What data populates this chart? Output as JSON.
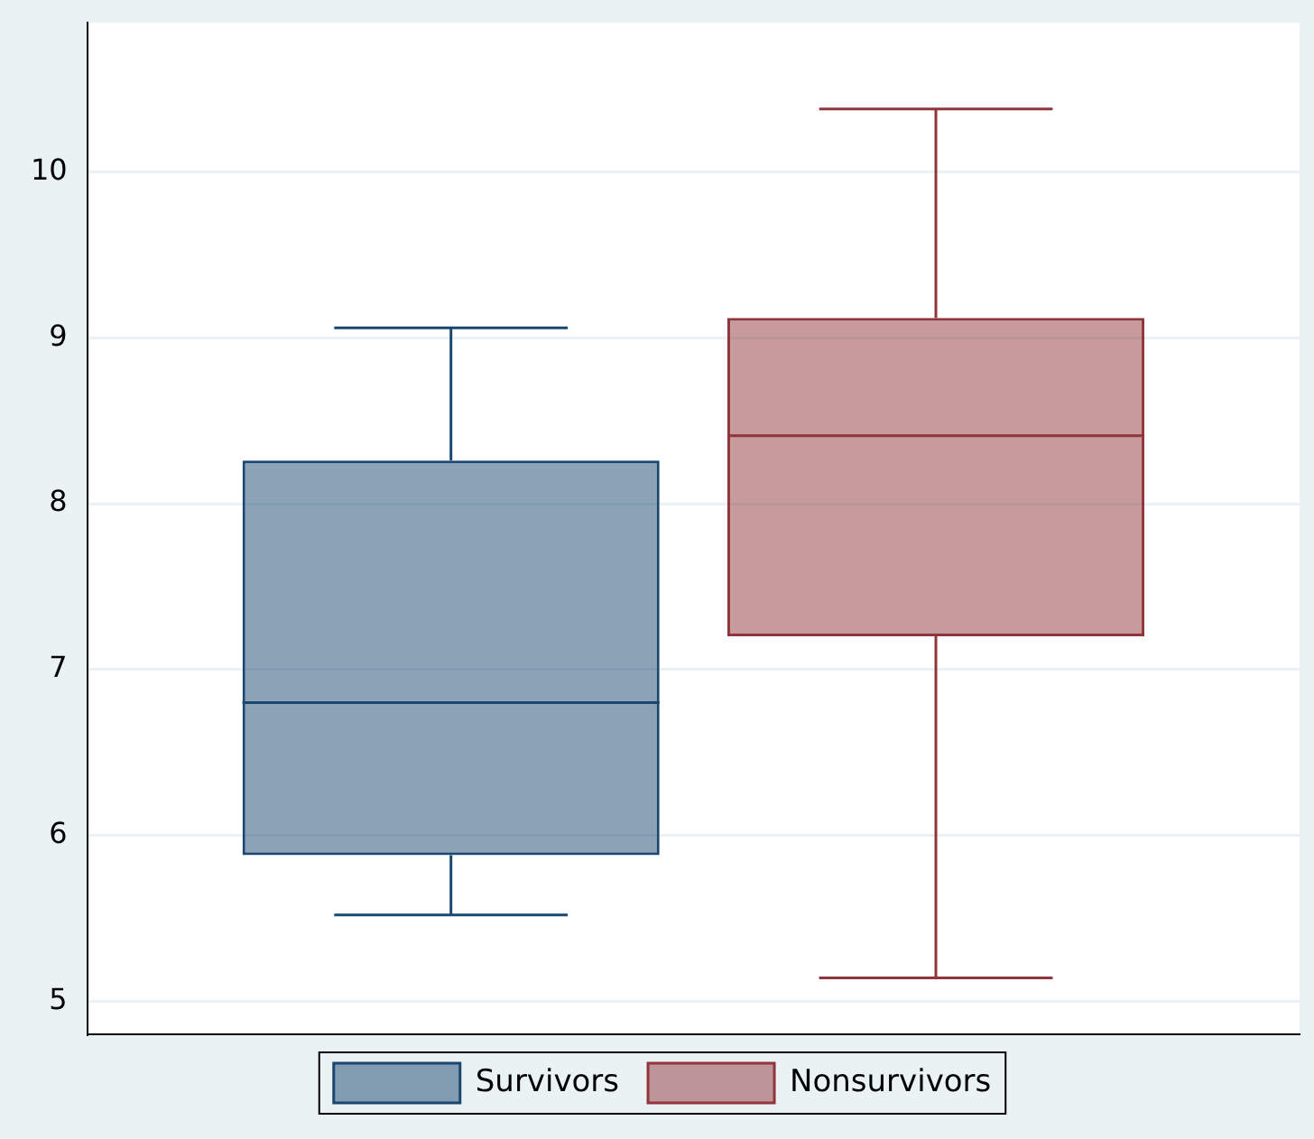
{
  "chart_data": {
    "type": "box",
    "categories": [
      null
    ],
    "series": [
      {
        "name": "Survivors",
        "color": "#1a476f",
        "boxes": [
          {
            "low": 5.52,
            "q1": 5.88,
            "median": 6.8,
            "q3": 8.26,
            "high": 9.06
          }
        ]
      },
      {
        "name": "Nonsurvivors",
        "color": "#90353b",
        "boxes": [
          {
            "low": 5.14,
            "q1": 7.2,
            "median": 8.41,
            "q3": 9.12,
            "high": 10.38
          }
        ]
      }
    ],
    "ylim": [
      4.8,
      10.9
    ],
    "yticks": [
      5,
      6,
      7,
      8,
      9,
      10
    ],
    "grid": "y",
    "legend": "bottom",
    "tick_labels": "y"
  }
}
